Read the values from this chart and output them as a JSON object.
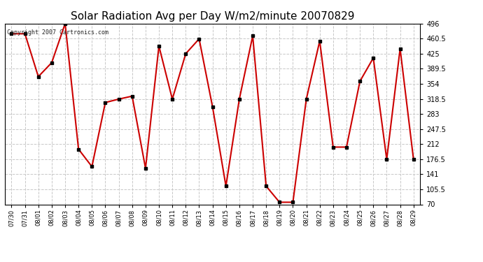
{
  "title": "Solar Radiation Avg per Day W/m2/minute 20070829",
  "copyright": "Copyright 2007 Cartronics.com",
  "dates": [
    "07/30",
    "07/31",
    "08/01",
    "08/02",
    "08/03",
    "08/04",
    "08/05",
    "08/06",
    "08/07",
    "08/08",
    "08/09",
    "08/10",
    "08/11",
    "08/12",
    "08/13",
    "08/14",
    "08/15",
    "08/16",
    "08/17",
    "08/18",
    "08/19",
    "08/20",
    "08/21",
    "08/22",
    "08/23",
    "08/24",
    "08/25",
    "08/26",
    "08/27",
    "08/28",
    "08/29"
  ],
  "values": [
    472,
    472,
    371,
    404,
    496,
    200,
    159,
    310,
    318,
    325,
    155,
    443,
    318,
    425,
    460,
    300,
    113,
    318,
    467,
    113,
    75,
    75,
    318,
    455,
    205,
    205,
    360,
    415,
    176,
    437,
    176
  ],
  "line_color": "#cc0000",
  "marker_color": "#000000",
  "bg_color": "#ffffff",
  "grid_color": "#c8c8c8",
  "ylim_min": 70.0,
  "ylim_max": 496.0,
  "yticks": [
    70.0,
    105.5,
    141.0,
    176.5,
    212.0,
    247.5,
    283.0,
    318.5,
    354.0,
    389.5,
    425.0,
    460.5,
    496.0
  ],
  "title_fontsize": 11,
  "tick_fontsize": 7,
  "xlabel_fontsize": 6,
  "copyright_fontsize": 6
}
